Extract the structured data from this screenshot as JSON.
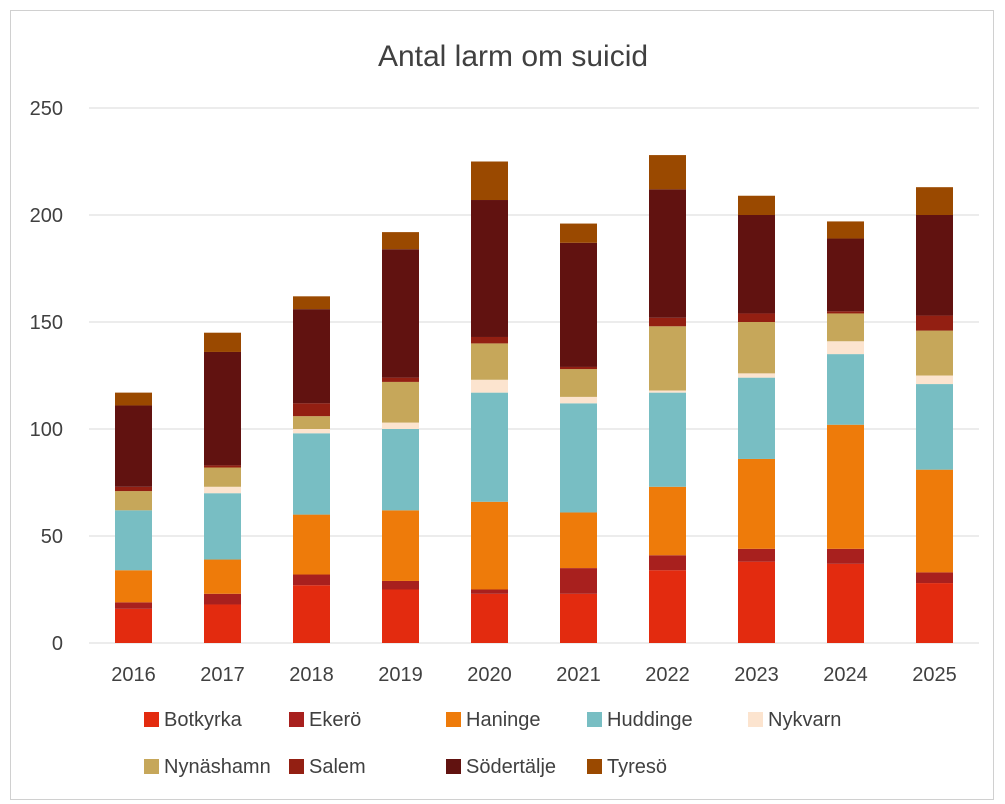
{
  "chart_data": {
    "type": "bar",
    "stacked": true,
    "title": "Antal larm om suicid",
    "xlabel": "",
    "ylabel": "",
    "ylim": [
      0,
      250
    ],
    "yticks": [
      "0",
      "50",
      "100",
      "150",
      "200",
      "250"
    ],
    "grid": true,
    "legend_position": "bottom",
    "categories": [
      "2016",
      "2017",
      "2018",
      "2019",
      "2020",
      "2021",
      "2022",
      "2023",
      "2024",
      "2025"
    ],
    "series": [
      {
        "name": "Botkyrka",
        "color": "#e32b0f",
        "values": [
          16,
          18,
          27,
          25,
          23,
          23,
          34,
          38,
          37,
          28
        ]
      },
      {
        "name": "Ekerö",
        "color": "#a8201e",
        "values": [
          3,
          5,
          5,
          4,
          2,
          12,
          7,
          6,
          7,
          5
        ]
      },
      {
        "name": "Haninge",
        "color": "#ee7b0a",
        "values": [
          15,
          16,
          28,
          33,
          41,
          26,
          32,
          42,
          58,
          48
        ]
      },
      {
        "name": "Huddinge",
        "color": "#78bec3",
        "values": [
          28,
          31,
          38,
          38,
          51,
          51,
          44,
          38,
          33,
          40
        ]
      },
      {
        "name": "Nykvarn",
        "color": "#fce4cf",
        "values": [
          0,
          3,
          2,
          3,
          6,
          3,
          1,
          2,
          6,
          4
        ]
      },
      {
        "name": "Nynäshamn",
        "color": "#c6a75a",
        "values": [
          9,
          9,
          6,
          19,
          17,
          13,
          30,
          24,
          13,
          21
        ]
      },
      {
        "name": "Salem",
        "color": "#931f12",
        "values": [
          2,
          1,
          6,
          2,
          3,
          1,
          4,
          4,
          1,
          7
        ]
      },
      {
        "name": "Södertälje",
        "color": "#611210",
        "values": [
          38,
          53,
          44,
          60,
          64,
          58,
          60,
          46,
          34,
          47
        ]
      },
      {
        "name": "Tyresö",
        "color": "#9a4900",
        "values": [
          6,
          9,
          6,
          8,
          18,
          9,
          16,
          9,
          8,
          13
        ]
      }
    ]
  }
}
